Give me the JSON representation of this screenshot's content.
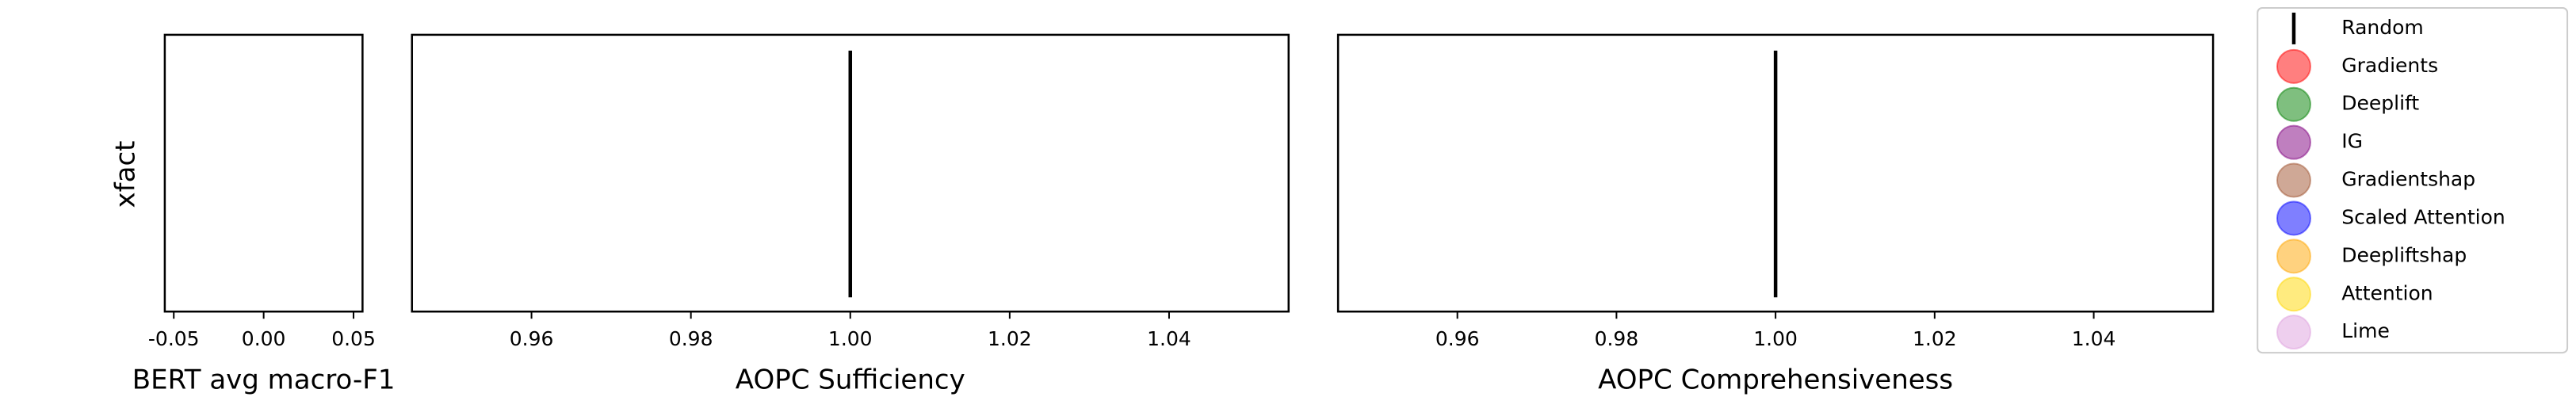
{
  "chart_data": {
    "type": "strip",
    "ylabel": "xfact",
    "legend": [
      {
        "name": "Random",
        "color": "#000000",
        "marker": "line"
      },
      {
        "name": "Gradients",
        "color": "#ff0000",
        "marker": "circle"
      },
      {
        "name": "Deeplift",
        "color": "#008000",
        "marker": "circle"
      },
      {
        "name": "IG",
        "color": "#800080",
        "marker": "circle"
      },
      {
        "name": "Gradientshap",
        "color": "#a0522d",
        "marker": "circle"
      },
      {
        "name": "Scaled Attention",
        "color": "#0000ff",
        "marker": "circle"
      },
      {
        "name": "Deepliftshap",
        "color": "#ffa500",
        "marker": "circle"
      },
      {
        "name": "Attention",
        "color": "#ffd700",
        "marker": "circle"
      },
      {
        "name": "Lime",
        "color": "#dda0dd",
        "marker": "circle"
      }
    ],
    "panels": [
      {
        "xlabel": "BERT avg macro-F1",
        "xlim": [
          -0.055,
          0.055
        ],
        "xticks": [
          -0.05,
          {
            "value": 0,
            "label": "0.00"
          },
          0.05
        ],
        "random_values": []
      },
      {
        "xlabel": "AOPC Sufficiency",
        "xlim": [
          0.945,
          1.055
        ],
        "xticks": [
          0.96,
          0.98,
          {
            "value": 1.0,
            "label": "1.00"
          },
          1.02,
          1.04
        ],
        "random_values": [
          1.0
        ]
      },
      {
        "xlabel": "AOPC Comprehensiveness",
        "xlim": [
          0.945,
          1.055
        ],
        "xticks": [
          0.96,
          0.98,
          {
            "value": 1.0,
            "label": "1.00"
          },
          1.02,
          1.04
        ],
        "random_values": [
          1.0
        ]
      }
    ]
  }
}
